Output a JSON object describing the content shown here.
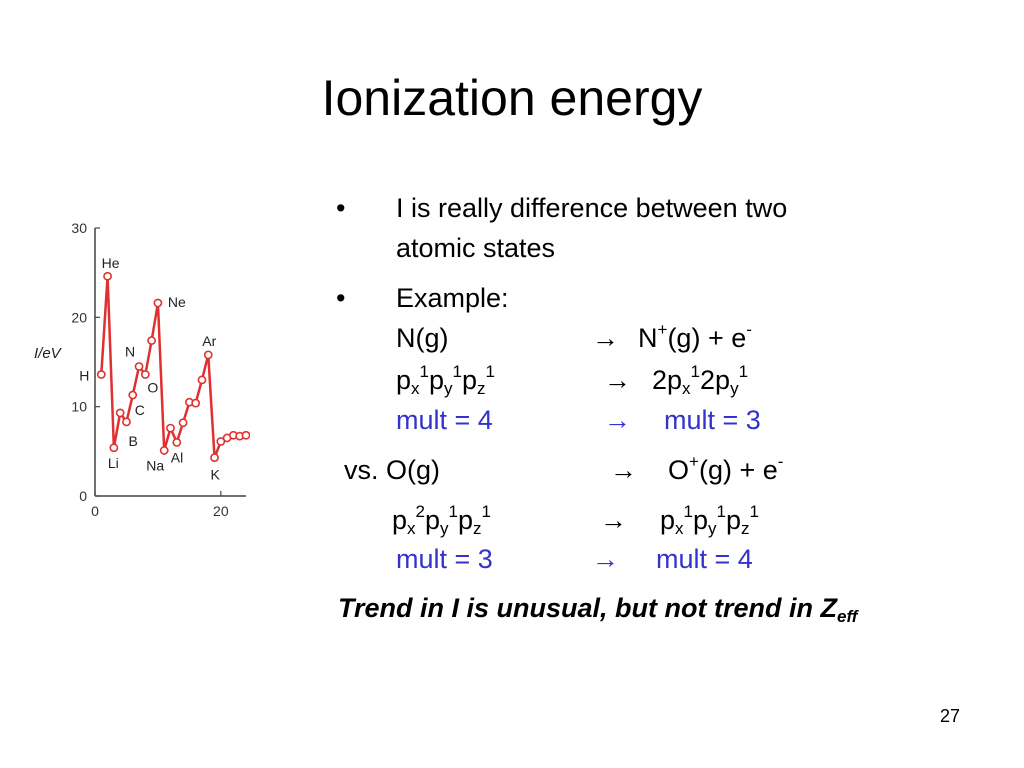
{
  "title": "Ionization energy",
  "chart_data": {
    "type": "line",
    "ylabel": "I/eV",
    "yticks": [
      "0",
      "10",
      "20",
      "30"
    ],
    "xticks": [
      "0",
      "20"
    ],
    "ylim": [
      0,
      30
    ],
    "xlim": [
      0,
      24
    ],
    "color": "#e03030",
    "x": [
      1,
      2,
      3,
      4,
      5,
      6,
      7,
      8,
      9,
      10,
      11,
      12,
      13,
      14,
      15,
      16,
      17,
      18,
      19,
      20,
      21,
      22,
      23,
      24
    ],
    "values": [
      13.6,
      24.6,
      5.4,
      9.3,
      8.3,
      11.3,
      14.5,
      13.6,
      17.4,
      21.6,
      5.1,
      7.6,
      6.0,
      8.2,
      10.5,
      10.4,
      13.0,
      15.8,
      4.3,
      6.1,
      6.5,
      6.8,
      6.7,
      6.8
    ],
    "annotations": [
      {
        "label": "H",
        "x": 1
      },
      {
        "label": "He",
        "x": 2
      },
      {
        "label": "Li",
        "x": 3
      },
      {
        "label": "B",
        "x": 5
      },
      {
        "label": "C",
        "x": 6
      },
      {
        "label": "N",
        "x": 7
      },
      {
        "label": "O",
        "x": 8
      },
      {
        "label": "Ne",
        "x": 10
      },
      {
        "label": "Na",
        "x": 11
      },
      {
        "label": "Al",
        "x": 13
      },
      {
        "label": "Ar",
        "x": 18
      },
      {
        "label": "K",
        "x": 19
      }
    ]
  },
  "bullets": {
    "b1_symbol": "•",
    "b1_line1": "I is really difference between two",
    "b1_line2": "atomic states",
    "b2_symbol": "•",
    "b2_line1": "Example:"
  },
  "eq": {
    "n_left": "N(g)",
    "arrow": "→",
    "n_right_a": "N",
    "n_right_plus": "+",
    "n_right_b": "(g) + e",
    "n_right_minus": "-",
    "p": "p",
    "x": "x",
    "y": "y",
    "z": "z",
    "one": "1",
    "two": "1",
    "twop": "2p",
    "sup2": "2",
    "mult4": "mult = 4",
    "mult3": "mult = 3",
    "vs_left": "vs. O(g)",
    "o_right_a": "O",
    "o_right_b": "(g) + e"
  },
  "trend": {
    "main": "Trend in I is unusual, but not trend in Z",
    "sub": "eff"
  },
  "page_number": "27"
}
